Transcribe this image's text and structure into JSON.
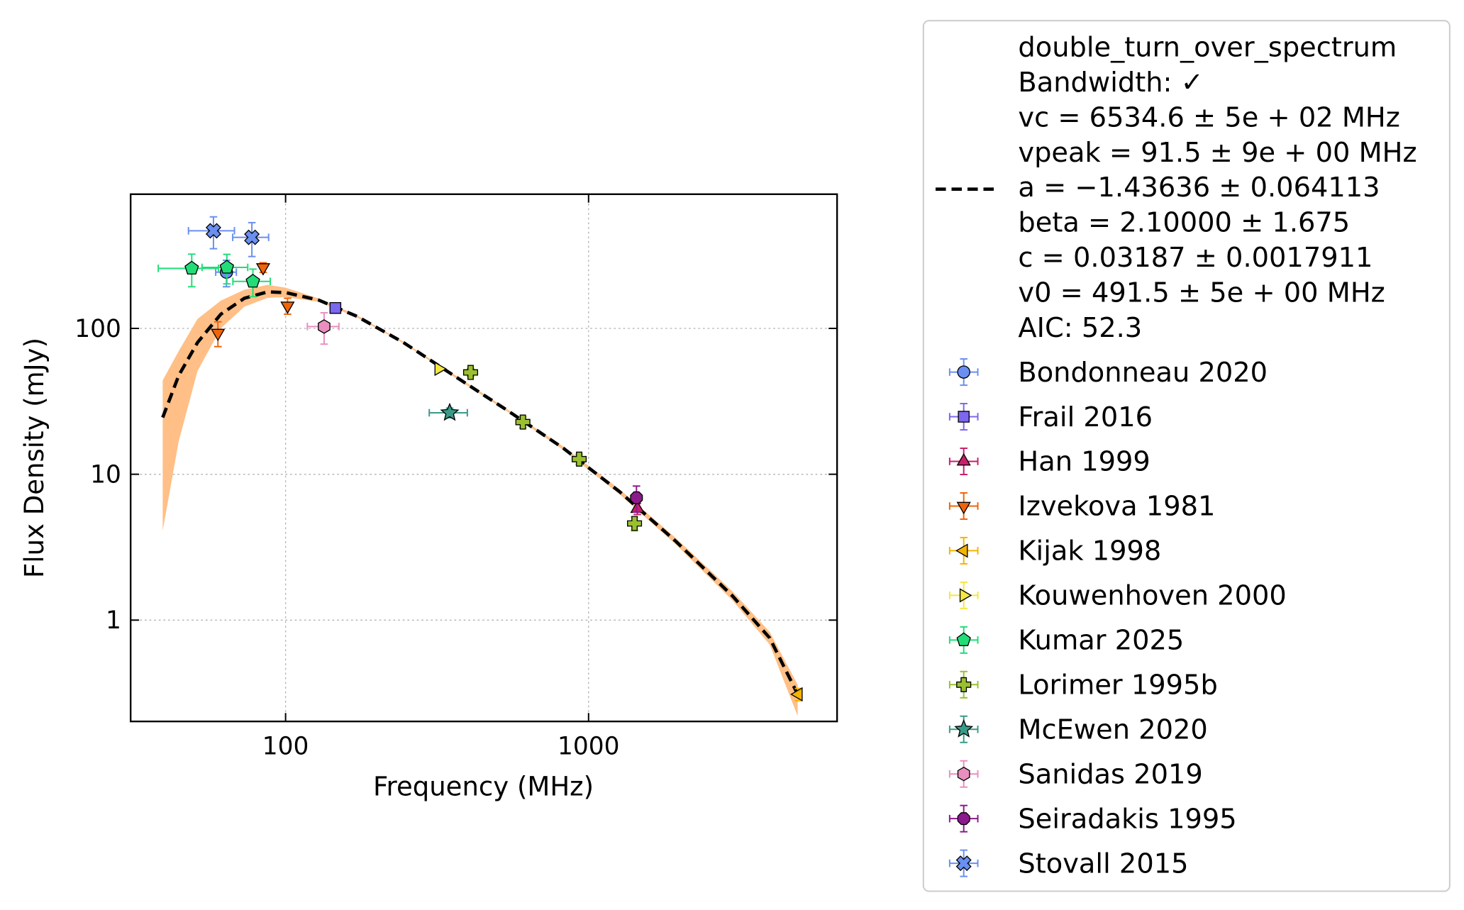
{
  "chart_data": {
    "type": "scatter",
    "xlabel": "Frequency (MHz)",
    "ylabel": "Flux Density (mJy)",
    "xscale": "log",
    "yscale": "log",
    "xlim": [
      30.8,
      6610
    ],
    "ylim": [
      0.202,
      832
    ],
    "xticks": [
      100,
      1000
    ],
    "yticks": [
      1,
      10,
      100
    ],
    "grid": true,
    "legend": "outside right",
    "series": [
      {
        "name": "double_turn_over_spectrum",
        "fit_info": [
          "Bandwidth: ✓",
          "vc = 6534.6 ± 5e + 02 MHz",
          "vpeak = 91.5 ± 9e + 00 MHz",
          "a = −1.43636 ± 0.064113",
          "beta = 2.10000 ± 1.675",
          "c = 0.03187 ± 0.0017911",
          "v0 = 491.5 ± 5e + 00 MHz",
          "AIC: 52.3"
        ],
        "type": "line",
        "style": "dashed",
        "color": "#000000",
        "band_color": "#ffbf86",
        "x": [
          39.3,
          44.4,
          51.2,
          61.1,
          73.1,
          87.3,
          100,
          129,
          172,
          245,
          351,
          538,
          825,
          1265,
          1941,
          2980,
          3960,
          4900
        ],
        "values": [
          24.5,
          47.6,
          80,
          125,
          161,
          178,
          176,
          156,
          121,
          80,
          49,
          27.5,
          15.1,
          7.6,
          3.47,
          1.47,
          0.755,
          0.31
        ],
        "band_upper": [
          44,
          70,
          116,
          155,
          184,
          199,
          190,
          160,
          123,
          81,
          50,
          28,
          15.5,
          7.9,
          3.65,
          1.58,
          0.83,
          0.36
        ],
        "band_lower": [
          4.1,
          16.9,
          51,
          100,
          141,
          162,
          164,
          152,
          119,
          79,
          48,
          27,
          14.7,
          7.3,
          3.3,
          1.37,
          0.68,
          0.22
        ]
      },
      {
        "name": "Bondonneau 2020",
        "color": "#6a8ff0",
        "marker": "circle",
        "x": [
          63.8
        ],
        "values": [
          243
        ],
        "xerr": [
          5
        ],
        "yerr": [
          50
        ]
      },
      {
        "name": "Frail 2016",
        "color": "#7b68ee",
        "marker": "square",
        "x": [
          146
        ],
        "values": [
          138
        ],
        "xerr": [
          4
        ],
        "yerr": [
          10
        ]
      },
      {
        "name": "Han 1999",
        "color": "#c71f6b",
        "marker": "triangle-up",
        "x": [
          1449
        ],
        "values": [
          5.8
        ],
        "xerr": [
          0
        ],
        "yerr": [
          0.5
        ]
      },
      {
        "name": "Izvekova 1981",
        "color": "#f0640a",
        "marker": "triangle-down",
        "x": [
          59.8,
          84.3,
          101.5
        ],
        "values": [
          93,
          262,
          143
        ],
        "xerr": [
          0,
          0,
          0
        ],
        "yerr": [
          18,
          20,
          18
        ]
      },
      {
        "name": "Kijak 1998",
        "color": "#f5b400",
        "marker": "triangle-left",
        "x": [
          4930
        ],
        "values": [
          0.31
        ],
        "xerr": [
          0
        ],
        "yerr": [
          0.03
        ]
      },
      {
        "name": "Kouwenhoven 2000",
        "color": "#f5e642",
        "marker": "triangle-right",
        "x": [
          320
        ],
        "values": [
          52.8
        ],
        "xerr": [
          0
        ],
        "yerr": [
          2
        ]
      },
      {
        "name": "Kumar 2025",
        "color": "#22dd77",
        "marker": "pentagon",
        "x": [
          49,
          64,
          78
        ],
        "values": [
          258,
          262,
          210
        ],
        "xerr": [
          11,
          11,
          11
        ],
        "yerr": [
          65,
          60,
          45
        ]
      },
      {
        "name": "Lorimer 1995b",
        "color": "#9ac030",
        "marker": "plus",
        "x": [
          408,
          607,
          931,
          1418
        ],
        "values": [
          49.9,
          22.8,
          12.7,
          4.6
        ],
        "xerr": [
          0,
          0,
          0,
          0
        ],
        "yerr": [
          3,
          2,
          1,
          0.5
        ]
      },
      {
        "name": "McEwen 2020",
        "color": "#3a9a88",
        "marker": "star",
        "x": [
          348
        ],
        "values": [
          26.4
        ],
        "xerr": [
          50
        ],
        "yerr": [
          2
        ]
      },
      {
        "name": "Sanidas 2019",
        "color": "#e98fbf",
        "marker": "hexagon",
        "x": [
          134
        ],
        "values": [
          103
        ],
        "xerr": [
          16
        ],
        "yerr": [
          25
        ]
      },
      {
        "name": "Seiradakis 1995",
        "color": "#8b1a8b",
        "marker": "octagon",
        "x": [
          1439
        ],
        "values": [
          6.9
        ],
        "xerr": [
          0
        ],
        "yerr": [
          1.4
        ]
      },
      {
        "name": "Stovall 2015",
        "color": "#6a8ff0",
        "marker": "x",
        "x": [
          57.8,
          77.4
        ],
        "values": [
          467,
          421
        ],
        "xerr": [
          10,
          10.5
        ],
        "yerr": [
          115,
          110
        ]
      }
    ]
  }
}
